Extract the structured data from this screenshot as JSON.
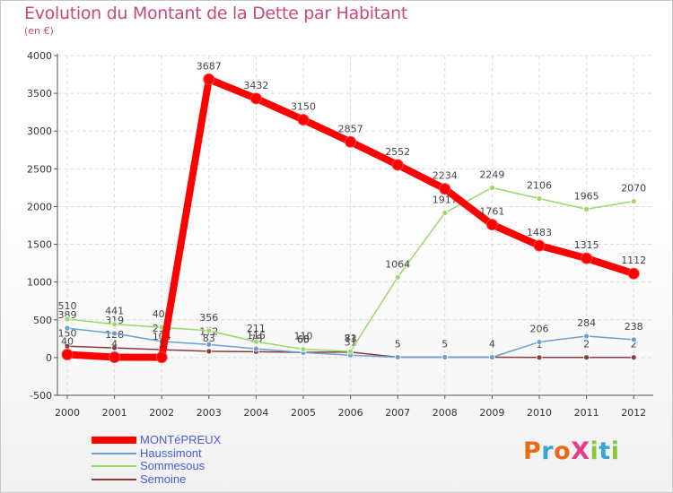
{
  "chart_data": {
    "type": "line",
    "title": "Evolution du Montant de la Dette par Habitant",
    "subtitle": "(en €)",
    "xlabel": "",
    "ylabel": "",
    "categories": [
      "2000",
      "2001",
      "2002",
      "2003",
      "2004",
      "2005",
      "2006",
      "2007",
      "2008",
      "2009",
      "2010",
      "2011",
      "2012"
    ],
    "ylim": [
      -500,
      4000
    ],
    "yticks": [
      -500,
      0,
      500,
      1000,
      1500,
      2000,
      2500,
      3000,
      3500,
      4000
    ],
    "grid": true,
    "legend_position": "bottom-left",
    "series": [
      {
        "name": "MONTéPREUX",
        "color": "#ff0000",
        "width": 8,
        "values": [
          40,
          4,
          3,
          3687,
          3432,
          3150,
          2857,
          2552,
          2234,
          1761,
          1483,
          1315,
          1112
        ],
        "labels": [
          "40",
          "4",
          "3",
          "3687",
          "3432",
          "3150",
          "2857",
          "2552",
          "2234",
          "1761",
          "1483",
          "1315",
          "1112"
        ]
      },
      {
        "name": "Haussimont",
        "color": "#6a9fcf",
        "width": 1.5,
        "values": [
          389,
          319,
          214,
          172,
          116,
          65,
          31,
          5,
          5,
          4,
          206,
          284,
          238
        ],
        "labels": [
          "389",
          "319",
          "214",
          "172",
          "116",
          "65",
          "31",
          "5",
          "5",
          "4",
          "206",
          "284",
          "238"
        ]
      },
      {
        "name": "Sommesous",
        "color": "#9ad86a",
        "width": 1.5,
        "values": [
          510,
          441,
          400,
          356,
          211,
          110,
          81,
          1064,
          1917,
          2249,
          2106,
          1965,
          2070
        ],
        "labels": [
          "510",
          "441",
          "400",
          "356",
          "211",
          "110",
          "81",
          "1064",
          "1917",
          "2249",
          "2106",
          "1965",
          "2070"
        ]
      },
      {
        "name": "Semoine",
        "color": "#8a3a3a",
        "width": 1.5,
        "values": [
          150,
          128,
          104,
          83,
          78,
          68,
          73,
          5,
          5,
          4,
          1,
          2,
          2
        ],
        "labels": [
          "150",
          "128",
          "104",
          "83",
          "78",
          "68",
          "73",
          "",
          "",
          "",
          "1",
          "2",
          "2"
        ]
      }
    ]
  },
  "logo": {
    "text": "ProXiti",
    "colors": [
      "#e86a1a",
      "#3aa3d8",
      "#e86a1a",
      "#e63a8a",
      "#8ac63a",
      "#3aa3d8",
      "#8ac63a"
    ]
  }
}
